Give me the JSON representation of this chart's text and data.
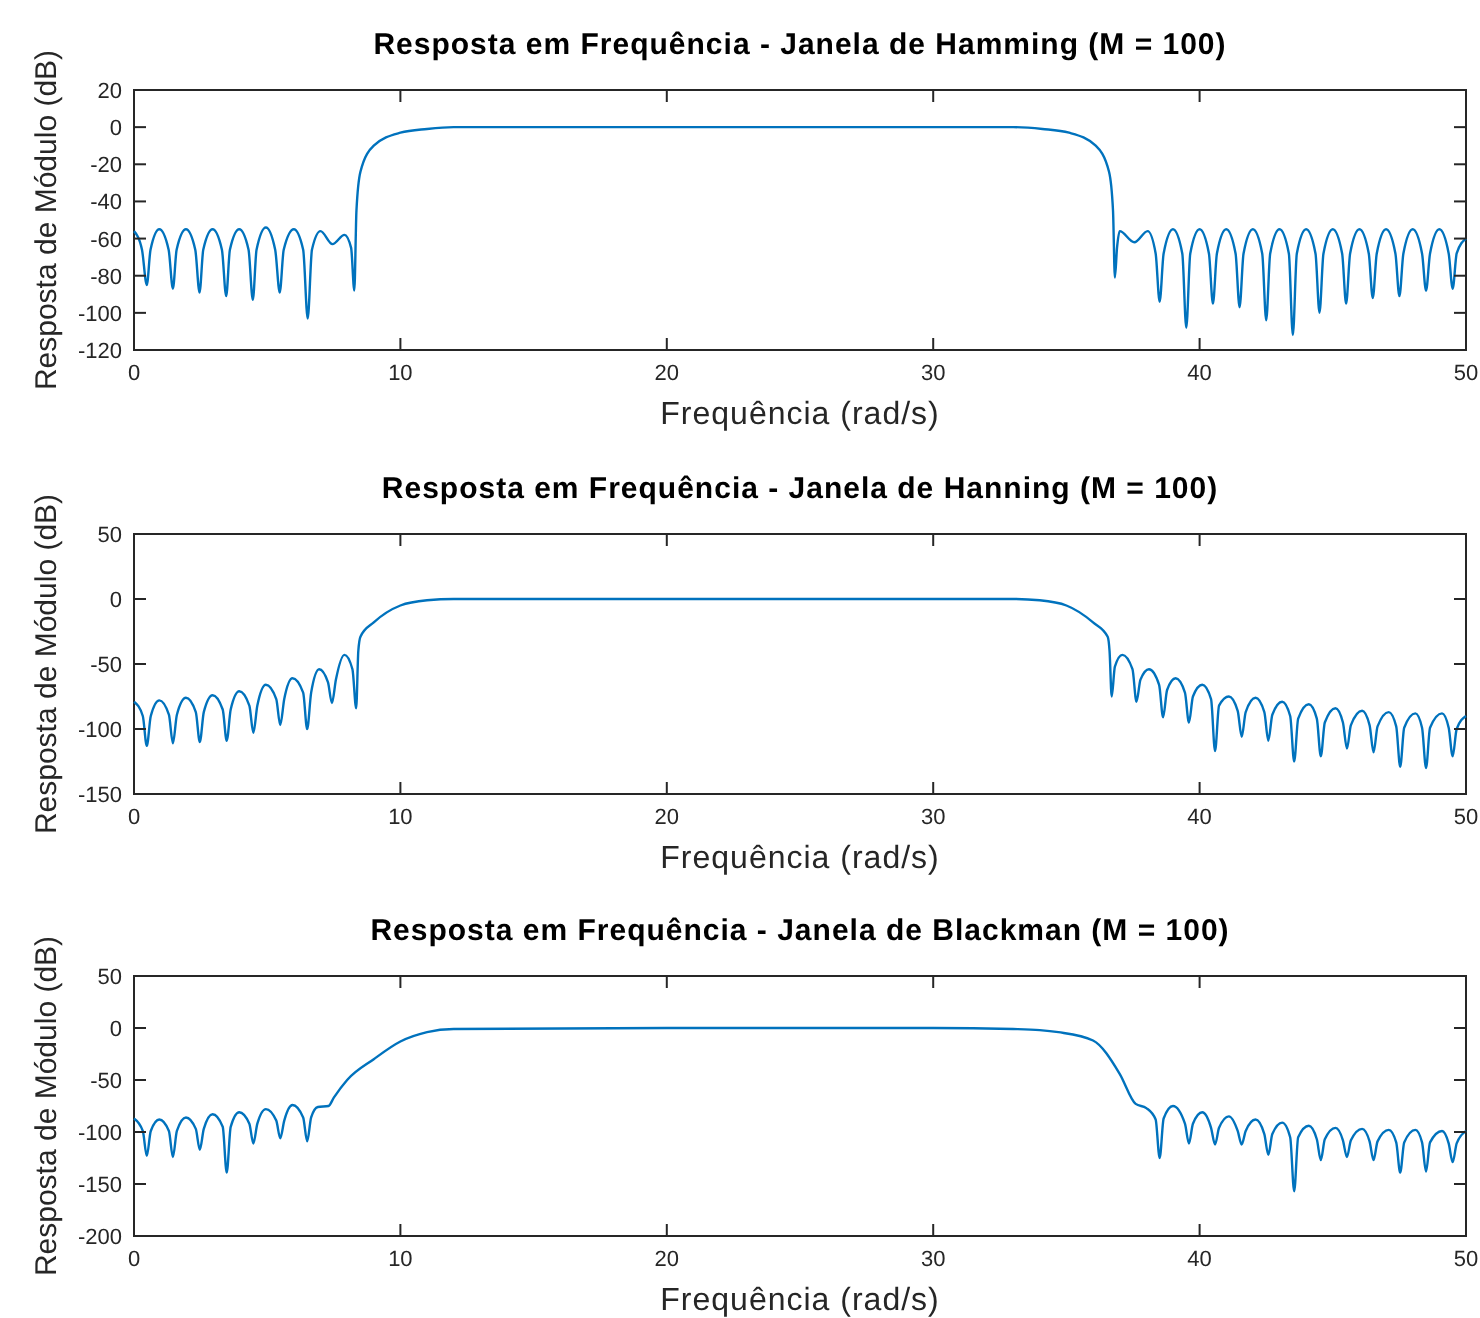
{
  "chart_data": [
    {
      "type": "line",
      "title": "Resposta em Frequência - Janela de Hamming (M = 100)",
      "xlabel": "Frequência (rad/s)",
      "ylabel": "Resposta de Módulo (dB)",
      "xlim": [
        0,
        50
      ],
      "xticks": [
        0,
        10,
        20,
        30,
        40,
        50
      ],
      "ylim": [
        -120,
        20
      ],
      "yticks": [
        -120,
        -100,
        -80,
        -60,
        -40,
        -20,
        0,
        20
      ],
      "grid": false,
      "marker": "none",
      "line_style": "solid",
      "series": [
        {
          "color": "#0072bd",
          "x": [
            0,
            0.3,
            0.48,
            0.62,
            0.95,
            1.3,
            1.46,
            1.6,
            1.95,
            2.3,
            2.46,
            2.6,
            2.95,
            3.3,
            3.46,
            3.6,
            3.95,
            4.3,
            4.46,
            4.6,
            4.95,
            5.3,
            5.47,
            5.62,
            6.0,
            6.35,
            6.52,
            6.68,
            7.0,
            7.45,
            7.9,
            8.15,
            8.27,
            8.35,
            8.5,
            9,
            10,
            11,
            12,
            20,
            30,
            33,
            34.1,
            35.1,
            36.1,
            36.6,
            36.75,
            36.82,
            36.9,
            37,
            37.55,
            38.05,
            38.35,
            38.5,
            38.65,
            39,
            39.35,
            39.5,
            39.65,
            40,
            40.35,
            40.5,
            40.65,
            41,
            41.35,
            41.5,
            41.65,
            42,
            42.35,
            42.5,
            42.65,
            43,
            43.35,
            43.5,
            43.65,
            44,
            44.35,
            44.5,
            44.65,
            45,
            45.35,
            45.5,
            45.65,
            46,
            46.35,
            46.5,
            46.65,
            47,
            47.35,
            47.5,
            47.65,
            48,
            48.35,
            48.5,
            48.65,
            49,
            49.35,
            49.5,
            49.65,
            50
          ],
          "values": [
            -56,
            -66,
            -85,
            -66,
            -55,
            -66,
            -87,
            -66,
            -55,
            -66,
            -89,
            -66,
            -55,
            -66,
            -91,
            -66,
            -55,
            -66,
            -93,
            -66,
            -54,
            -66,
            -89,
            -66,
            -55,
            -66,
            -103,
            -66,
            -56,
            -63,
            -58,
            -65,
            -88,
            -45,
            -24,
            -10,
            -3,
            -1,
            0,
            0,
            0,
            0,
            -1,
            -3,
            -10,
            -24,
            -45,
            -81,
            -65,
            -56,
            -62,
            -56,
            -68,
            -94,
            -68,
            -55,
            -68,
            -108,
            -68,
            -55,
            -68,
            -95,
            -68,
            -55,
            -68,
            -97,
            -68,
            -55,
            -68,
            -104,
            -68,
            -55,
            -68,
            -112,
            -68,
            -55,
            -68,
            -100,
            -68,
            -55,
            -68,
            -95,
            -68,
            -55,
            -68,
            -92,
            -68,
            -55,
            -68,
            -91,
            -68,
            -55,
            -68,
            -88,
            -68,
            -55,
            -68,
            -87,
            -68,
            -60
          ]
        }
      ]
    },
    {
      "type": "line",
      "title": "Resposta em Frequência - Janela de Hanning (M = 100)",
      "xlabel": "Frequência (rad/s)",
      "ylabel": "Resposta de Módulo (dB)",
      "xlim": [
        0,
        50
      ],
      "xticks": [
        0,
        10,
        20,
        30,
        40,
        50
      ],
      "ylim": [
        -150,
        50
      ],
      "yticks": [
        -150,
        -100,
        -50,
        0,
        50
      ],
      "grid": false,
      "marker": "none",
      "line_style": "solid",
      "series": [
        {
          "color": "#0072bd",
          "x": [
            0,
            0.33,
            0.48,
            0.63,
            0.95,
            1.31,
            1.46,
            1.61,
            1.95,
            2.32,
            2.47,
            2.62,
            2.95,
            3.33,
            3.48,
            3.63,
            3.95,
            4.33,
            4.48,
            4.63,
            4.95,
            5.34,
            5.49,
            5.64,
            5.95,
            6.35,
            6.5,
            6.65,
            6.95,
            7.28,
            7.43,
            7.58,
            7.9,
            8.2,
            8.34,
            8.42,
            8.5,
            9,
            10,
            11,
            12,
            20,
            30,
            33,
            34,
            35,
            36,
            36.55,
            36.62,
            36.7,
            36.82,
            37.1,
            37.48,
            37.63,
            37.78,
            38.1,
            38.48,
            38.63,
            38.78,
            39.1,
            39.45,
            39.6,
            39.75,
            40.1,
            40.43,
            40.58,
            40.73,
            41.1,
            41.43,
            41.58,
            41.73,
            42.1,
            42.43,
            42.58,
            42.73,
            43.1,
            43.4,
            43.55,
            43.7,
            44.1,
            44.4,
            44.55,
            44.7,
            45.1,
            45.38,
            45.53,
            45.68,
            46.1,
            46.38,
            46.53,
            46.68,
            47.1,
            47.38,
            47.53,
            47.68,
            48.1,
            48.35,
            48.5,
            48.65,
            49.1,
            49.35,
            49.5,
            49.65,
            50
          ],
          "values": [
            -79,
            -90,
            -113,
            -90,
            -78,
            -89,
            -111,
            -89,
            -76,
            -87,
            -110,
            -87,
            -74,
            -85,
            -109,
            -85,
            -71,
            -82,
            -103,
            -82,
            -66,
            -77,
            -97,
            -77,
            -61,
            -72,
            -100,
            -72,
            -54,
            -64,
            -80,
            -62,
            -43,
            -54,
            -84,
            -40,
            -29,
            -18,
            -5,
            -1,
            0,
            0,
            0,
            0,
            -1,
            -5,
            -18,
            -29,
            -40,
            -75,
            -52,
            -43,
            -54,
            -79,
            -62,
            -54,
            -66,
            -91,
            -70,
            -61,
            -72,
            -95,
            -75,
            -66,
            -77,
            -117,
            -82,
            -75,
            -86,
            -106,
            -87,
            -76,
            -87,
            -109,
            -89,
            -79,
            -90,
            -125,
            -92,
            -81,
            -92,
            -121,
            -95,
            -84,
            -95,
            -115,
            -97,
            -86,
            -97,
            -118,
            -98,
            -87,
            -98,
            -129,
            -99,
            -88,
            -99,
            -130,
            -99,
            -88,
            -99,
            -121,
            -100,
            -90
          ]
        }
      ]
    },
    {
      "type": "line",
      "title": "Resposta em Frequência - Janela de Blackman (M = 100)",
      "xlabel": "Frequência (rad/s)",
      "ylabel": "Resposta de Módulo (dB)",
      "xlim": [
        0,
        50
      ],
      "xticks": [
        0,
        10,
        20,
        30,
        40,
        50
      ],
      "ylim": [
        -200,
        50
      ],
      "yticks": [
        -200,
        -150,
        -100,
        -50,
        0,
        50
      ],
      "grid": false,
      "marker": "none",
      "line_style": "solid",
      "series": [
        {
          "color": "#0072bd",
          "x": [
            0,
            0.33,
            0.48,
            0.63,
            0.95,
            1.31,
            1.46,
            1.61,
            1.95,
            2.32,
            2.47,
            2.62,
            2.95,
            3.33,
            3.48,
            3.63,
            3.95,
            4.33,
            4.48,
            4.63,
            4.95,
            5.34,
            5.49,
            5.64,
            5.95,
            6.35,
            6.5,
            6.65,
            6.9,
            7.3,
            7.5,
            8,
            9,
            10,
            11,
            12,
            20,
            30,
            33,
            34,
            34.7,
            36,
            37,
            37.6,
            38,
            38.35,
            38.5,
            38.65,
            39.0,
            39.45,
            39.6,
            39.75,
            40.1,
            40.43,
            40.58,
            40.73,
            41.1,
            41.43,
            41.58,
            41.73,
            42.1,
            42.43,
            42.58,
            42.73,
            43.1,
            43.4,
            43.55,
            43.7,
            44.1,
            44.4,
            44.55,
            44.7,
            45.1,
            45.38,
            45.53,
            45.68,
            46.1,
            46.38,
            46.53,
            46.68,
            47.1,
            47.38,
            47.53,
            47.68,
            48.1,
            48.35,
            48.5,
            48.65,
            49.1,
            49.35,
            49.5,
            49.65,
            50
          ],
          "values": [
            -87,
            -99,
            -123,
            -99,
            -88,
            -99,
            -124,
            -99,
            -86,
            -97,
            -117,
            -97,
            -83,
            -95,
            -139,
            -95,
            -81,
            -92,
            -111,
            -92,
            -78,
            -89,
            -106,
            -89,
            -74,
            -86,
            -109,
            -86,
            -76,
            -75,
            -67,
            -50,
            -30,
            -13,
            -4,
            -1,
            0,
            0,
            -1,
            -2,
            -4,
            -12,
            -44,
            -73,
            -77,
            -88,
            -125,
            -87,
            -75,
            -92,
            -111,
            -92,
            -81,
            -96,
            -112,
            -96,
            -85,
            -99,
            -112,
            -99,
            -88,
            -102,
            -122,
            -102,
            -91,
            -105,
            -157,
            -105,
            -94,
            -107,
            -127,
            -107,
            -96,
            -108,
            -124,
            -108,
            -97,
            -109,
            -127,
            -109,
            -98,
            -110,
            -139,
            -110,
            -98,
            -110,
            -138,
            -110,
            -99,
            -111,
            -129,
            -111,
            -99
          ]
        }
      ]
    }
  ]
}
